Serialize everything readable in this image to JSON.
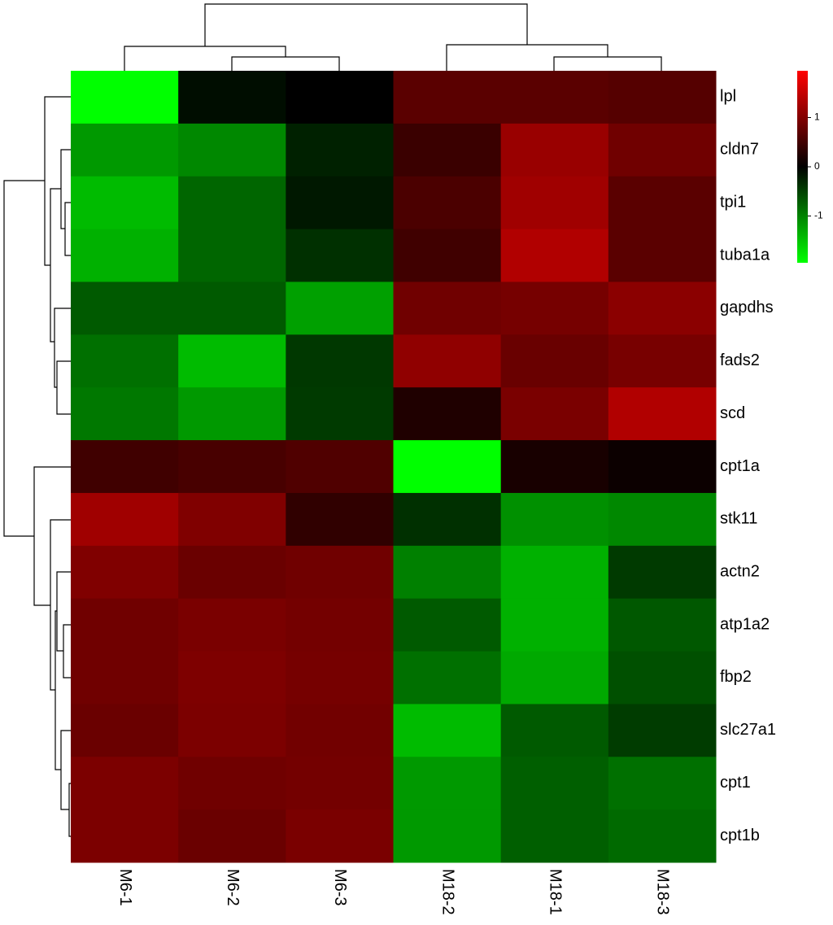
{
  "chart_data": {
    "type": "heatmap",
    "columns": [
      "M6-1",
      "M6-2",
      "M6-3",
      "M18-2",
      "M18-1",
      "M18-3"
    ],
    "rows": [
      "lpl",
      "cldn7",
      "tpi1",
      "tuba1a",
      "gapdhs",
      "fads2",
      "scd",
      "cpt1a",
      "stk11",
      "actn2",
      "atp1a2",
      "fbp2",
      "slc27a1",
      "cpt1",
      "cpt1b"
    ],
    "values": [
      [
        -1.95,
        -0.1,
        0,
        0.69,
        0.69,
        0.65
      ],
      [
        -1.17,
        -1.04,
        -0.25,
        0.44,
        1.17,
        0.86
      ],
      [
        -1.43,
        -0.78,
        -0.18,
        0.57,
        1.22,
        0.69
      ],
      [
        -1.35,
        -0.78,
        -0.37,
        0.49,
        1.35,
        0.69
      ],
      [
        -0.69,
        -0.69,
        -1.22,
        0.86,
        0.9,
        1.06
      ],
      [
        -0.86,
        -1.43,
        -0.43,
        1.1,
        0.8,
        0.92
      ],
      [
        -0.92,
        -1.17,
        -0.44,
        0.24,
        0.93,
        1.35
      ],
      [
        0.49,
        0.55,
        0.61,
        -1.95,
        0.18,
        0.09
      ],
      [
        1.22,
        0.98,
        0.37,
        -0.37,
        -1.1,
        -1.04
      ],
      [
        0.98,
        0.81,
        0.86,
        -0.98,
        -1.35,
        -0.44
      ],
      [
        0.86,
        0.93,
        0.89,
        -0.69,
        -1.35,
        -0.67
      ],
      [
        0.86,
        0.96,
        0.9,
        -0.86,
        -1.29,
        -0.61
      ],
      [
        0.81,
        0.95,
        0.87,
        -1.43,
        -0.69,
        -0.46
      ],
      [
        0.95,
        0.86,
        0.89,
        -1.17,
        -0.73,
        -0.86
      ],
      [
        0.95,
        0.81,
        0.93,
        -1.17,
        -0.73,
        -0.81
      ]
    ],
    "zlim": [
      -1.95,
      1.95
    ],
    "legend_ticks": [
      -1,
      0,
      1
    ],
    "colors": {
      "low": "#00ff00",
      "mid": "#000000",
      "high": "#ff0000"
    }
  }
}
